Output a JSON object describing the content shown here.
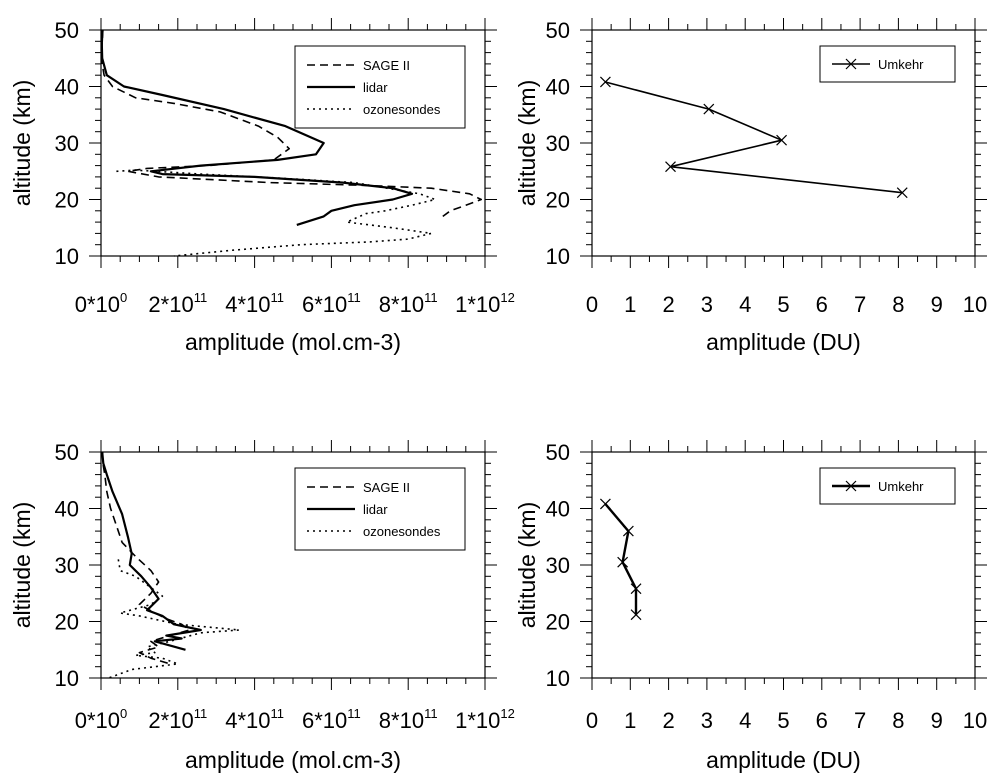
{
  "chart_data": [
    {
      "type": "line",
      "xlabel": "amplitude (mol.cm-3)",
      "ylabel": "altitude (km)",
      "xlim": [
        0,
        1000000000000.0
      ],
      "ylim": [
        10,
        50
      ],
      "x_tick_values": [
        0,
        200000000000.0,
        400000000000.0,
        600000000000.0,
        800000000000.0,
        1000000000000.0
      ],
      "x_tick_labels": [
        {
          "base": "0*10",
          "exp": "0"
        },
        {
          "base": "2*10",
          "exp": "11"
        },
        {
          "base": "4*10",
          "exp": "11"
        },
        {
          "base": "6*10",
          "exp": "11"
        },
        {
          "base": "8*10",
          "exp": "11"
        },
        {
          "base": "1*10",
          "exp": "12"
        }
      ],
      "y_ticks": [
        10,
        20,
        30,
        40,
        50
      ],
      "legend_position": "top-right",
      "series": [
        {
          "name": "SAGE II",
          "style": "dashed",
          "x": [
            5000000000.0,
            3000000000.0,
            2000000000.0,
            3000000000.0,
            8000000000.0,
            30000000000.0,
            90000000000.0,
            190000000000.0,
            310000000000.0,
            410000000000.0,
            460000000000.0,
            490000000000.0,
            450000000000.0,
            280000000000.0,
            120000000000.0,
            70000000000.0,
            150000000000.0,
            440000000000.0,
            690000000000.0,
            860000000000.0,
            960000000000.0,
            990000000000.0,
            950000000000.0,
            910000000000.0,
            890000000000.0
          ],
          "y": [
            50,
            48,
            46,
            44,
            42,
            40,
            38,
            37,
            35.5,
            33,
            31,
            29,
            27,
            26,
            25.5,
            25,
            24,
            23,
            22.5,
            22,
            21,
            20,
            19,
            18,
            17
          ]
        },
        {
          "name": "lidar",
          "style": "solid",
          "x": [
            4000000000.0,
            2000000000.0,
            3000000000.0,
            15000000000.0,
            60000000000.0,
            160000000000.0,
            320000000000.0,
            480000000000.0,
            580000000000.0,
            560000000000.0,
            460000000000.0,
            260000000000.0,
            130000000000.0,
            160000000000.0,
            400000000000.0,
            630000000000.0,
            760000000000.0,
            810000000000.0,
            760000000000.0,
            660000000000.0,
            600000000000.0,
            580000000000.0,
            510000000000.0
          ],
          "y": [
            50,
            47.5,
            45,
            42,
            40,
            38.5,
            36,
            33,
            30,
            28,
            27,
            26,
            25,
            24.5,
            24,
            23,
            22,
            21,
            20,
            19,
            18,
            17,
            15.5
          ]
        },
        {
          "name": "ozonesondes",
          "style": "dotted",
          "x": [
            40000000000.0,
            90000000000.0,
            260000000000.0,
            460000000000.0,
            660000000000.0,
            830000000000.0,
            870000000000.0,
            810000000000.0,
            740000000000.0,
            690000000000.0,
            640000000000.0,
            760000000000.0,
            860000000000.0,
            800000000000.0,
            700000000000.0,
            520000000000.0,
            340000000000.0,
            190000000000.0
          ],
          "y": [
            25,
            25.2,
            24.5,
            23.8,
            23,
            21,
            20,
            19,
            18,
            17.5,
            16,
            15,
            14,
            13,
            12.5,
            12,
            11,
            10
          ]
        }
      ]
    },
    {
      "type": "line",
      "xlabel": "amplitude (DU)",
      "ylabel": "altitude (km)",
      "xlim": [
        0,
        10
      ],
      "ylim": [
        10,
        50
      ],
      "x_ticks": [
        0,
        1,
        2,
        3,
        4,
        5,
        6,
        7,
        8,
        9,
        10
      ],
      "y_ticks": [
        10,
        20,
        30,
        40,
        50
      ],
      "legend_position": "top-right",
      "series": [
        {
          "name": "Umkehr",
          "marker": "x",
          "x": [
            0.35,
            3.05,
            4.95,
            2.05,
            8.1
          ],
          "y": [
            40.8,
            36,
            30.5,
            25.8,
            21.2
          ]
        }
      ]
    },
    {
      "type": "line",
      "xlabel": "amplitude (mol.cm-3)",
      "ylabel": "altitude (km)",
      "xlim": [
        0,
        1000000000000.0
      ],
      "ylim": [
        10,
        50
      ],
      "x_tick_values": [
        0,
        200000000000.0,
        400000000000.0,
        600000000000.0,
        800000000000.0,
        1000000000000.0
      ],
      "x_tick_labels": [
        {
          "base": "0*10",
          "exp": "0"
        },
        {
          "base": "2*10",
          "exp": "11"
        },
        {
          "base": "4*10",
          "exp": "11"
        },
        {
          "base": "6*10",
          "exp": "11"
        },
        {
          "base": "8*10",
          "exp": "11"
        },
        {
          "base": "1*10",
          "exp": "12"
        }
      ],
      "y_ticks": [
        10,
        20,
        30,
        40,
        50
      ],
      "legend_position": "top-right",
      "series": [
        {
          "name": "SAGE II",
          "style": "dashed",
          "x": [
            4000000000.0,
            5000000000.0,
            10000000000.0,
            15000000000.0,
            25000000000.0,
            40000000000.0,
            55000000000.0,
            90000000000.0,
            130000000000.0,
            150000000000.0,
            130000000000.0,
            100000000000.0,
            140000000000.0,
            170000000000.0,
            210000000000.0,
            230000000000.0,
            180000000000.0,
            130000000000.0,
            150000000000.0,
            100000000000.0,
            130000000000.0,
            180000000000.0
          ],
          "y": [
            50,
            48,
            46,
            43,
            40,
            37,
            34,
            31.5,
            29,
            27,
            25,
            23,
            21.5,
            20.5,
            19.5,
            18.5,
            17.5,
            16.5,
            15.5,
            14.5,
            13.5,
            12.5
          ]
        },
        {
          "name": "lidar",
          "style": "solid",
          "x": [
            3000000000.0,
            6000000000.0,
            15000000000.0,
            30000000000.0,
            55000000000.0,
            70000000000.0,
            80000000000.0,
            75000000000.0,
            105000000000.0,
            130000000000.0,
            150000000000.0,
            120000000000.0,
            160000000000.0,
            190000000000.0,
            260000000000.0,
            170000000000.0,
            210000000000.0,
            140000000000.0,
            220000000000.0
          ],
          "y": [
            50,
            48,
            46,
            43,
            39,
            35,
            32,
            30,
            28,
            26,
            24,
            22,
            21,
            19.5,
            18.5,
            17.5,
            17,
            16.5,
            15
          ]
        },
        {
          "name": "ozonesondes",
          "style": "dotted",
          "x": [
            45000000000.0,
            50000000000.0,
            90000000000.0,
            130000000000.0,
            160000000000.0,
            130000000000.0,
            50000000000.0,
            100000000000.0,
            200000000000.0,
            280000000000.0,
            360000000000.0,
            260000000000.0,
            180000000000.0,
            120000000000.0,
            140000000000.0,
            90000000000.0,
            160000000000.0,
            200000000000.0,
            80000000000.0,
            20000000000.0
          ],
          "y": [
            31,
            29,
            28,
            26,
            24.5,
            23,
            21.5,
            21,
            19.5,
            19,
            18.5,
            18,
            16.5,
            15.5,
            14.5,
            14,
            13.5,
            12.5,
            11.5,
            10
          ]
        }
      ]
    },
    {
      "type": "line",
      "xlabel": "amplitude (DU)",
      "ylabel": "altitude (km)",
      "xlim": [
        0,
        10
      ],
      "ylim": [
        10,
        50
      ],
      "x_ticks": [
        0,
        1,
        2,
        3,
        4,
        5,
        6,
        7,
        8,
        9,
        10
      ],
      "y_ticks": [
        10,
        20,
        30,
        40,
        50
      ],
      "legend_position": "top-right",
      "series": [
        {
          "name": "Umkehr",
          "marker": "x",
          "thick": true,
          "x": [
            0.35,
            0.95,
            0.8,
            1.15,
            1.15
          ],
          "y": [
            40.8,
            36,
            30.5,
            25.8,
            21.2
          ]
        }
      ]
    }
  ]
}
